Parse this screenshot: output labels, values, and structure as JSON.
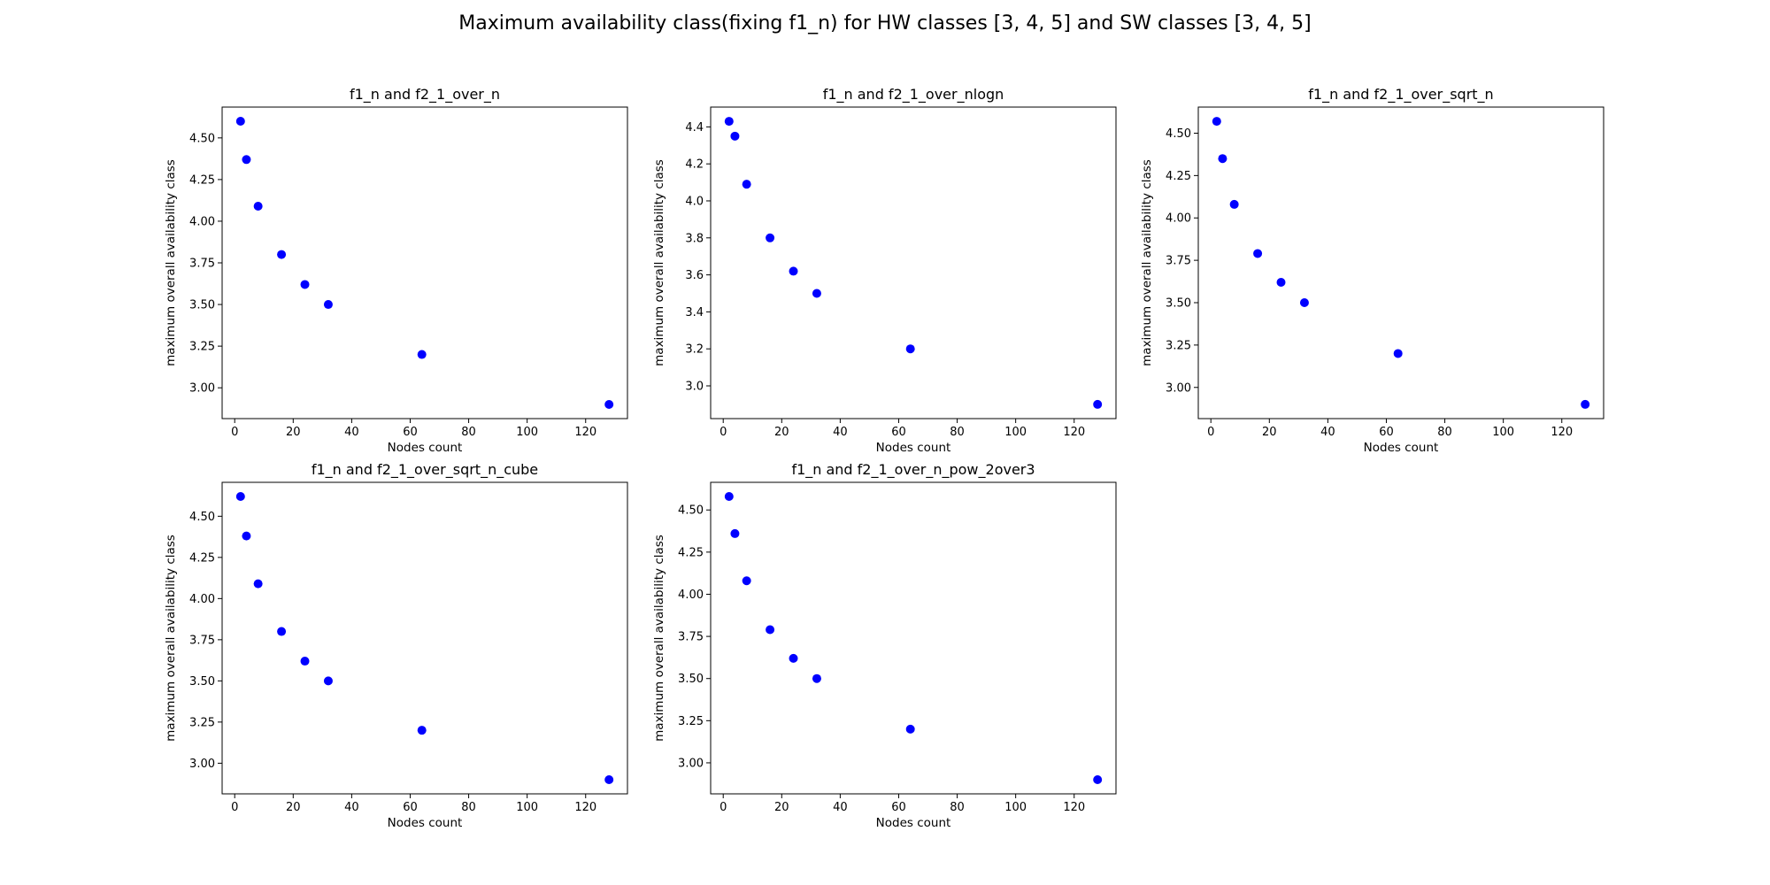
{
  "figure": {
    "title": "Maximum availability class(fixing f1_n) for HW classes [3, 4, 5] and SW classes [3, 4, 5]",
    "marker_color": "#0000ff"
  },
  "chart_data": [
    {
      "type": "scatter",
      "title": "f1_n and f2_1_over_n",
      "xlabel": "Nodes count",
      "ylabel": "maximum overall availability class",
      "x": [
        2,
        4,
        8,
        16,
        24,
        32,
        64,
        128
      ],
      "y": [
        4.6,
        4.37,
        4.09,
        3.8,
        3.62,
        3.5,
        3.2,
        2.9
      ],
      "xlim": [
        -4.3,
        134.3
      ],
      "ylim": [
        2.815,
        4.685
      ],
      "xticks": [
        0,
        20,
        40,
        60,
        80,
        100,
        120
      ],
      "xticklabels": [
        "0",
        "20",
        "40",
        "60",
        "80",
        "100",
        "120"
      ],
      "yticks": [
        3.0,
        3.25,
        3.5,
        3.75,
        4.0,
        4.25,
        4.5
      ],
      "yticklabels": [
        "3.00",
        "3.25",
        "3.50",
        "3.75",
        "4.00",
        "4.25",
        "4.50"
      ]
    },
    {
      "type": "scatter",
      "title": "f1_n and f2_1_over_nlogn",
      "xlabel": "Nodes count",
      "ylabel": "maximum overall availability class",
      "x": [
        2,
        4,
        8,
        16,
        24,
        32,
        64,
        128
      ],
      "y": [
        4.43,
        4.35,
        4.09,
        3.8,
        3.62,
        3.5,
        3.2,
        2.9
      ],
      "xlim": [
        -4.3,
        134.3
      ],
      "ylim": [
        2.823,
        4.507
      ],
      "xticks": [
        0,
        20,
        40,
        60,
        80,
        100,
        120
      ],
      "xticklabels": [
        "0",
        "20",
        "40",
        "60",
        "80",
        "100",
        "120"
      ],
      "yticks": [
        3.0,
        3.2,
        3.4,
        3.6,
        3.8,
        4.0,
        4.2,
        4.4
      ],
      "yticklabels": [
        "3.0",
        "3.2",
        "3.4",
        "3.6",
        "3.8",
        "4.0",
        "4.2",
        "4.4"
      ]
    },
    {
      "type": "scatter",
      "title": "f1_n and f2_1_over_sqrt_n",
      "xlabel": "Nodes count",
      "ylabel": "maximum overall availability class",
      "x": [
        2,
        4,
        8,
        16,
        24,
        32,
        64,
        128
      ],
      "y": [
        4.57,
        4.35,
        4.08,
        3.79,
        3.62,
        3.5,
        3.2,
        2.9
      ],
      "xlim": [
        -4.3,
        134.3
      ],
      "ylim": [
        2.816,
        4.654
      ],
      "xticks": [
        0,
        20,
        40,
        60,
        80,
        100,
        120
      ],
      "xticklabels": [
        "0",
        "20",
        "40",
        "60",
        "80",
        "100",
        "120"
      ],
      "yticks": [
        3.0,
        3.25,
        3.5,
        3.75,
        4.0,
        4.25,
        4.5
      ],
      "yticklabels": [
        "3.00",
        "3.25",
        "3.50",
        "3.75",
        "4.00",
        "4.25",
        "4.50"
      ]
    },
    {
      "type": "scatter",
      "title": "f1_n and f2_1_over_sqrt_n_cube",
      "xlabel": "Nodes count",
      "ylabel": "maximum overall availability class",
      "x": [
        2,
        4,
        8,
        16,
        24,
        32,
        64,
        128
      ],
      "y": [
        4.62,
        4.38,
        4.09,
        3.8,
        3.62,
        3.5,
        3.2,
        2.9
      ],
      "xlim": [
        -4.3,
        134.3
      ],
      "ylim": [
        2.814,
        4.706
      ],
      "xticks": [
        0,
        20,
        40,
        60,
        80,
        100,
        120
      ],
      "xticklabels": [
        "0",
        "20",
        "40",
        "60",
        "80",
        "100",
        "120"
      ],
      "yticks": [
        3.0,
        3.25,
        3.5,
        3.75,
        4.0,
        4.25,
        4.5
      ],
      "yticklabels": [
        "3.00",
        "3.25",
        "3.50",
        "3.75",
        "4.00",
        "4.25",
        "4.50"
      ]
    },
    {
      "type": "scatter",
      "title": "f1_n and f2_1_over_n_pow_2over3",
      "xlabel": "Nodes count",
      "ylabel": "maximum overall availability class",
      "x": [
        2,
        4,
        8,
        16,
        24,
        32,
        64,
        128
      ],
      "y": [
        4.58,
        4.36,
        4.08,
        3.79,
        3.62,
        3.5,
        3.2,
        2.9
      ],
      "xlim": [
        -4.3,
        134.3
      ],
      "ylim": [
        2.816,
        4.664
      ],
      "xticks": [
        0,
        20,
        40,
        60,
        80,
        100,
        120
      ],
      "xticklabels": [
        "0",
        "20",
        "40",
        "60",
        "80",
        "100",
        "120"
      ],
      "yticks": [
        3.0,
        3.25,
        3.5,
        3.75,
        4.0,
        4.25,
        4.5
      ],
      "yticklabels": [
        "3.00",
        "3.25",
        "3.50",
        "3.75",
        "4.00",
        "4.25",
        "4.50"
      ]
    }
  ]
}
